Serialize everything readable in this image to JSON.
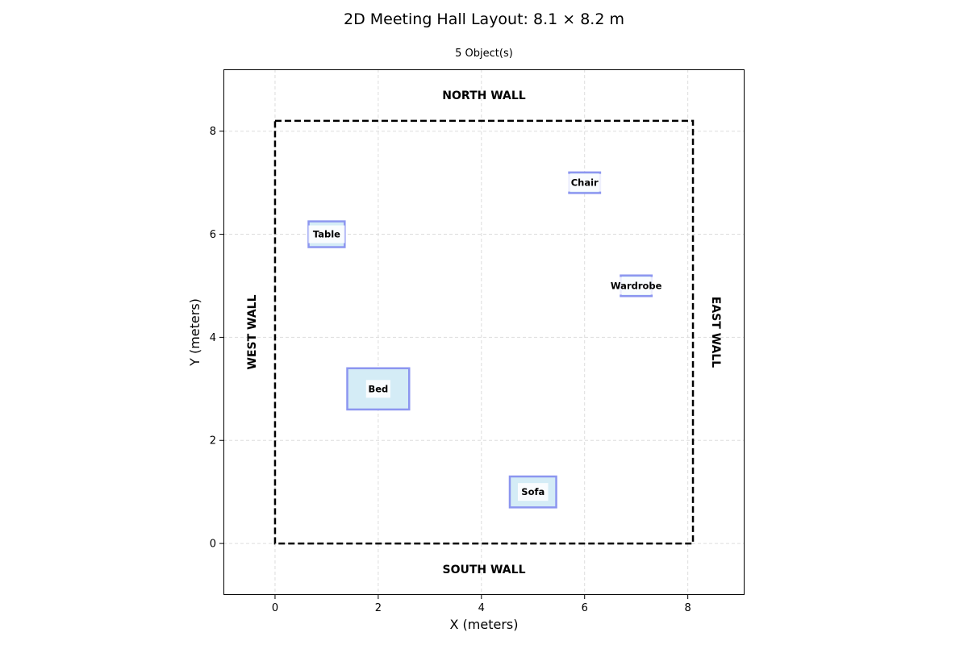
{
  "title": "2D Meeting Hall Layout: 8.1 × 8.2 m",
  "subtitle": "5 Object(s)",
  "walls": {
    "north": "NORTH WALL",
    "south": "SOUTH WALL",
    "west": "WEST WALL",
    "east": "EAST WALL"
  },
  "chart_data": {
    "type": "scatter",
    "xlabel": "X (meters)",
    "ylabel": "Y (meters)",
    "xlim": [
      -1,
      9.1
    ],
    "ylim": [
      -1,
      9.2
    ],
    "xticks": [
      0,
      2,
      4,
      6,
      8
    ],
    "yticks": [
      0,
      2,
      4,
      6,
      8
    ],
    "grid": true,
    "room": {
      "width": 8.1,
      "depth": 8.2
    },
    "objects": [
      {
        "name": "Table",
        "x_min": 0.65,
        "x_max": 1.35,
        "y_min": 5.75,
        "y_max": 6.25
      },
      {
        "name": "Chair",
        "x_min": 5.7,
        "x_max": 6.3,
        "y_min": 6.8,
        "y_max": 7.2
      },
      {
        "name": "Wardrobe",
        "x_min": 6.7,
        "x_max": 7.3,
        "y_min": 4.8,
        "y_max": 5.2
      },
      {
        "name": "Bed",
        "x_min": 1.4,
        "x_max": 2.6,
        "y_min": 2.6,
        "y_max": 3.4
      },
      {
        "name": "Sofa",
        "x_min": 4.55,
        "x_max": 5.45,
        "y_min": 0.7,
        "y_max": 1.3
      }
    ]
  },
  "colors": {
    "object_fill": "#d4ecf6",
    "object_stroke": "#8c96f0",
    "grid": "#dddddd",
    "room_outline": "#000000"
  }
}
